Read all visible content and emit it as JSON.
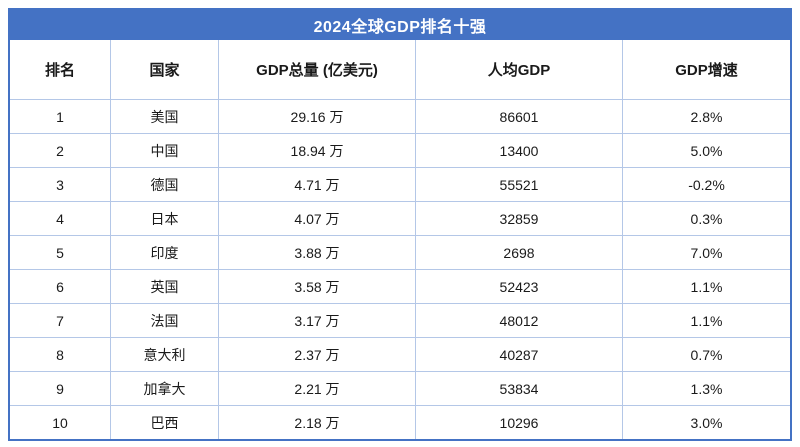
{
  "chart_data": {
    "type": "table",
    "title": "2024全球GDP排名十强",
    "columns": [
      "排名",
      "国家",
      "GDP总量 (亿美元)",
      "人均GDP",
      "GDP增速"
    ],
    "rows": [
      [
        "1",
        "美国",
        "29.16 万",
        "86601",
        "2.8%"
      ],
      [
        "2",
        "中国",
        "18.94 万",
        "13400",
        "5.0%"
      ],
      [
        "3",
        "德国",
        "4.71 万",
        "55521",
        "-0.2%"
      ],
      [
        "4",
        "日本",
        "4.07 万",
        "32859",
        "0.3%"
      ],
      [
        "5",
        "印度",
        "3.88 万",
        "2698",
        "7.0%"
      ],
      [
        "6",
        "英国",
        "3.58 万",
        "52423",
        "1.1%"
      ],
      [
        "7",
        "法国",
        "3.17 万",
        "48012",
        "1.1%"
      ],
      [
        "8",
        "意大利",
        "2.37 万",
        "40287",
        "0.7%"
      ],
      [
        "9",
        "加拿大",
        "2.21 万",
        "53834",
        "1.3%"
      ],
      [
        "10",
        "巴西",
        "2.18 万",
        "10296",
        "3.0%"
      ]
    ]
  },
  "colors": {
    "accent": "#4472C4",
    "border_light": "#B4C7E7",
    "text": "#1a1a1a",
    "title_text": "#ffffff",
    "row_bg": "#ffffff"
  }
}
